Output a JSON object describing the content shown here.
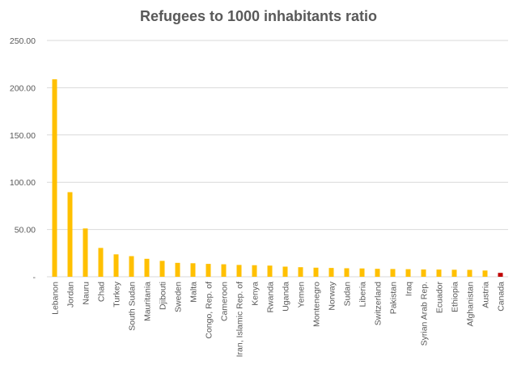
{
  "chart_data": {
    "type": "bar",
    "title": "Refugees to 1000 inhabitants ratio",
    "xlabel": "",
    "ylabel": "",
    "ylim": [
      0,
      250
    ],
    "y_ticks": [
      0,
      50,
      100,
      150,
      200,
      250
    ],
    "y_tick_labels": [
      "-",
      "50.00",
      "100.00",
      "150.00",
      "200.00",
      "250.00"
    ],
    "grid": true,
    "legend": "none",
    "categories": [
      "Lebanon",
      "Jordan",
      "Nauru",
      "Chad",
      "Turkey",
      "South Sudan",
      "Mauritania",
      "Djibouti",
      "Sweden",
      "Malta",
      "Congo, Rep. of",
      "Cameroon",
      "Iran, Islamic Rep. of",
      "Kenya",
      "Rwanda",
      "Uganda",
      "Yemen",
      "Montenegro",
      "Norway",
      "Sudan",
      "Liberia",
      "Switzerland",
      "Pakistan",
      "Iraq",
      "Syrian Arab Rep.",
      "Ecuador",
      "Ethiopia",
      "Afghanistan",
      "Austria",
      "Canada"
    ],
    "values": [
      208.9,
      89.5,
      51.1,
      30.5,
      23.7,
      21.8,
      19.0,
      16.8,
      14.7,
      14.3,
      13.6,
      13.2,
      12.5,
      12.2,
      11.8,
      10.7,
      10.1,
      9.6,
      9.3,
      9.0,
      8.8,
      8.4,
      8.2,
      8.0,
      7.7,
      7.6,
      7.4,
      7.3,
      6.6,
      4.1
    ],
    "colors": {
      "default": "#ffc000",
      "highlight": "#c00000",
      "highlight_category": "Canada",
      "grid": "#d9d9d9",
      "text": "#595959"
    }
  }
}
